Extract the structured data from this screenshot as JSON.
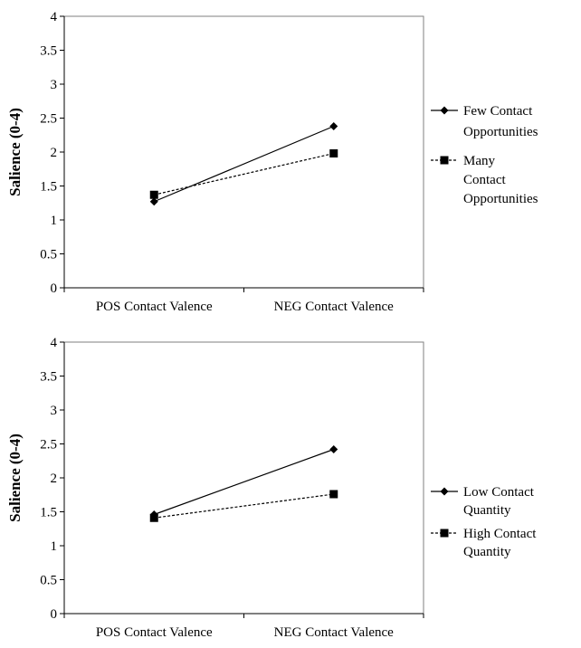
{
  "chart_data": [
    {
      "type": "line",
      "categories": [
        "POS Contact Valence",
        "NEG Contact Valence"
      ],
      "ylabel": "Salience (0-4)",
      "ylim": [
        0,
        4
      ],
      "yticks": [
        "0",
        "0.5",
        "1",
        "1.5",
        "2",
        "2.5",
        "3",
        "3.5",
        "4"
      ],
      "grid": false,
      "legend_position": "right",
      "series": [
        {
          "name": "Few Contact Opportunities",
          "values": [
            1.27,
            2.38
          ],
          "marker": "diamond",
          "line_style": "solid"
        },
        {
          "name": "Many Contact Opportunities",
          "values": [
            1.37,
            1.98
          ],
          "marker": "square",
          "line_style": "dashed"
        }
      ]
    },
    {
      "type": "line",
      "categories": [
        "POS Contact Valence",
        "NEG Contact Valence"
      ],
      "ylabel": "Salience (0-4)",
      "ylim": [
        0,
        4
      ],
      "yticks": [
        "0",
        "0.5",
        "1",
        "1.5",
        "2",
        "2.5",
        "3",
        "3.5",
        "4"
      ],
      "grid": false,
      "legend_position": "right",
      "series": [
        {
          "name": "Low Contact Quantity",
          "values": [
            1.46,
            2.42
          ],
          "marker": "diamond",
          "line_style": "solid"
        },
        {
          "name": "High Contact Quantity",
          "values": [
            1.41,
            1.76
          ],
          "marker": "square",
          "line_style": "dashed"
        }
      ]
    }
  ]
}
